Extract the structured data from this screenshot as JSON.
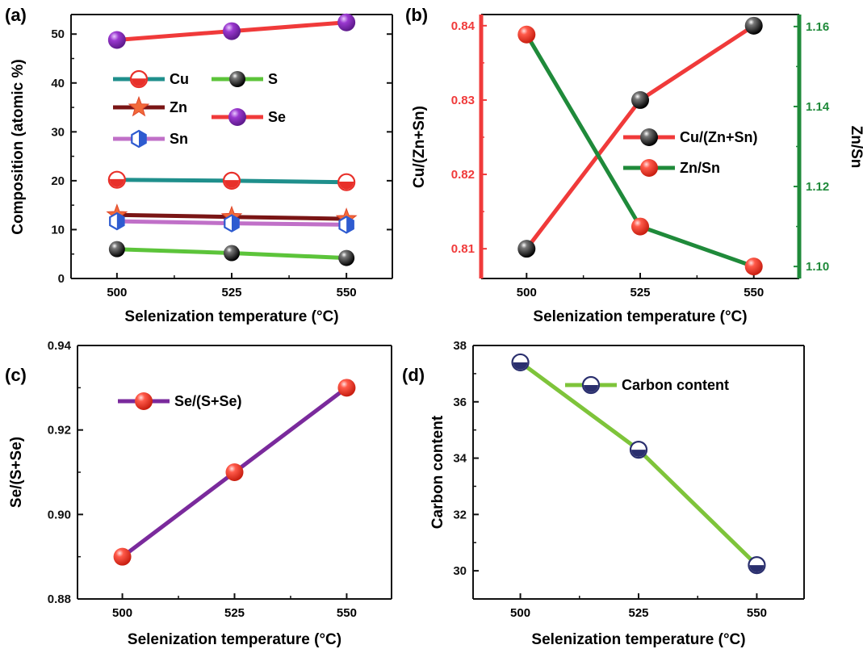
{
  "chart_data": [
    {
      "panel": "(a)",
      "type": "line",
      "x": [
        500,
        525,
        550
      ],
      "xlabel": "Selenization temperature (°C)",
      "ylabel": "Composition (atomic %)",
      "xticks": [
        "500",
        "525",
        "550"
      ],
      "yticks": [
        "0",
        "10",
        "20",
        "30",
        "40",
        "50"
      ],
      "xlim": [
        490,
        560
      ],
      "ylim": [
        0,
        54
      ],
      "legend_position": "upper-left",
      "series": [
        {
          "name": "Cu",
          "values": [
            20.2,
            20.0,
            19.7
          ],
          "color": "#1f8f8c",
          "marker": "half-circle"
        },
        {
          "name": "Zn",
          "values": [
            13.0,
            12.6,
            12.2
          ],
          "color": "#7a1515",
          "marker": "star"
        },
        {
          "name": "Sn",
          "values": [
            11.7,
            11.3,
            11.0
          ],
          "color": "#c070c8",
          "marker": "hexagon"
        },
        {
          "name": "S",
          "values": [
            6.0,
            5.2,
            4.2
          ],
          "color": "#5cc43a",
          "marker": "ball-black"
        },
        {
          "name": "Se",
          "values": [
            48.8,
            50.6,
            52.4
          ],
          "color": "#f03a3a",
          "marker": "ball-purple"
        }
      ]
    },
    {
      "panel": "(b)",
      "type": "line",
      "x": [
        500,
        525,
        550
      ],
      "xlabel": "Selenization temperature (°C)",
      "ylabel_left": "Cu/(Zn+Sn)",
      "ylabel_right": "Zn/Sn",
      "xticks": [
        "500",
        "525",
        "550"
      ],
      "yticks_left": [
        "0.81",
        "0.82",
        "0.83",
        "0.84"
      ],
      "yticks_right": [
        "1.10",
        "1.12",
        "1.14",
        "1.16"
      ],
      "ylim_left": [
        0.806,
        0.8415
      ],
      "ylim_right": [
        1.097,
        1.163
      ],
      "legend_position": "right",
      "series": [
        {
          "name": "Cu/(Zn+Sn)",
          "values": [
            0.81,
            0.83,
            0.84
          ],
          "axis": "left",
          "line_color": "#f03a3a",
          "marker": "ball-black"
        },
        {
          "name": "Zn/Sn",
          "values": [
            1.158,
            1.11,
            1.1
          ],
          "axis": "right",
          "line_color": "#1f8a3a",
          "marker": "ball-red"
        }
      ],
      "left_axis_color": "#f03a3a",
      "right_axis_color": "#1f8a3a"
    },
    {
      "panel": "(c)",
      "type": "line",
      "x": [
        500,
        525,
        550
      ],
      "xlabel": "Selenization temperature (°C)",
      "ylabel": "Se/(S+Se)",
      "xticks": [
        "500",
        "525",
        "550"
      ],
      "yticks": [
        "0.88",
        "0.90",
        "0.92",
        "0.94"
      ],
      "ylim": [
        0.88,
        0.94
      ],
      "legend_position": "upper-left",
      "series": [
        {
          "name": "Se/(S+Se)",
          "values": [
            0.89,
            0.91,
            0.93
          ],
          "color": "#7a2a9c",
          "marker": "ball-red"
        }
      ]
    },
    {
      "panel": "(d)",
      "type": "line",
      "x": [
        500,
        525,
        550
      ],
      "xlabel": "Selenization temperature (°C)",
      "ylabel": "Carbon content",
      "xticks": [
        "500",
        "525",
        "550"
      ],
      "yticks": [
        "30",
        "32",
        "34",
        "36",
        "38"
      ],
      "ylim": [
        29,
        38
      ],
      "legend_position": "upper-right",
      "series": [
        {
          "name": "Carbon content",
          "values": [
            37.4,
            34.3,
            30.2
          ],
          "color": "#7ec43a",
          "marker": "half-circle-navy"
        }
      ]
    }
  ]
}
